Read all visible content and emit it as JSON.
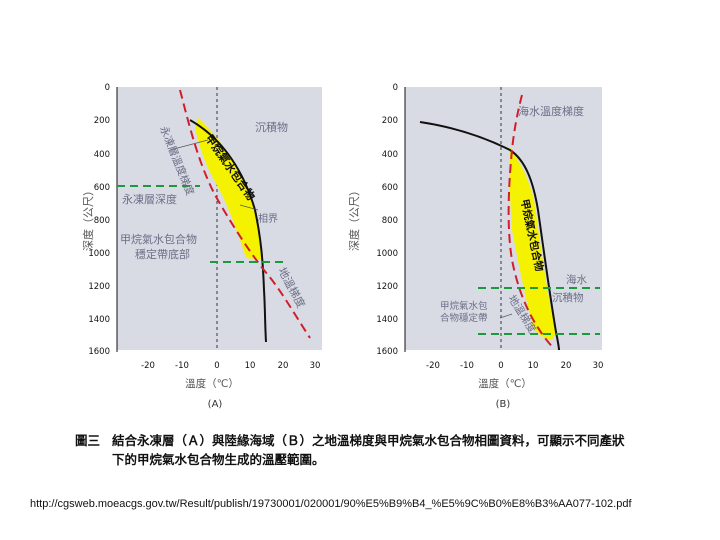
{
  "panel_a": {
    "y_ticks": [
      "0",
      "200",
      "400",
      "600",
      "800",
      "1000",
      "1200",
      "1400",
      "1600"
    ],
    "x_ticks": [
      "-20",
      "-10",
      "0",
      "10",
      "20",
      "30"
    ],
    "ylabel": "深度（公尺）",
    "xlabel": "溫度（℃）",
    "letter": "(A)",
    "labels": {
      "sediment": "沉積物",
      "permafrost_gradient": "永凍層溫度梯度",
      "hydrate_phase": "甲烷氣水包合物",
      "permafrost_depth": "永凍層深度",
      "phase_boundary": "相界",
      "stable_base": "甲烷氣水包合物穩定帶底部",
      "geothermal": "地溫梯度"
    }
  },
  "panel_b": {
    "y_ticks": [
      "0",
      "200",
      "400",
      "600",
      "800",
      "1000",
      "1200",
      "1400",
      "1600"
    ],
    "x_ticks": [
      "-20",
      "-10",
      "0",
      "10",
      "20",
      "30"
    ],
    "ylabel": "深度（公尺）",
    "xlabel": "溫度（℃）",
    "letter": "(B)",
    "labels": {
      "ocean_gradient": "海水溫度梯度",
      "hydrate_phase": "甲烷氣水包合物",
      "seawater": "海水",
      "sediment": "沉積物",
      "stable_zone": "甲烷氣水包合物穩定帶",
      "geothermal": "地溫梯度"
    }
  },
  "caption": {
    "figure_no": "圖三",
    "line1": "結合永凍層（Ａ）與陸緣海域（Ｂ）之地溫梯度與甲烷氣水包合物相圖資料，可顯示不同產狀",
    "line2": "下的甲烷氣水包合物生成的溫壓範圍。"
  },
  "source_url": "http://cgsweb.moeacgs.gov.tw/Result/publish/19730001/020001/90%E5%B9%B4_%E5%9C%B0%E8%B3%AA077-102.pdf",
  "colors": {
    "panel_bg": "#d9dbe4",
    "hydrate_fill": "#f5f200",
    "geotherm_line": "#d01f2a",
    "green_line": "#1a9a3a",
    "label_text": "#6b6f86"
  }
}
